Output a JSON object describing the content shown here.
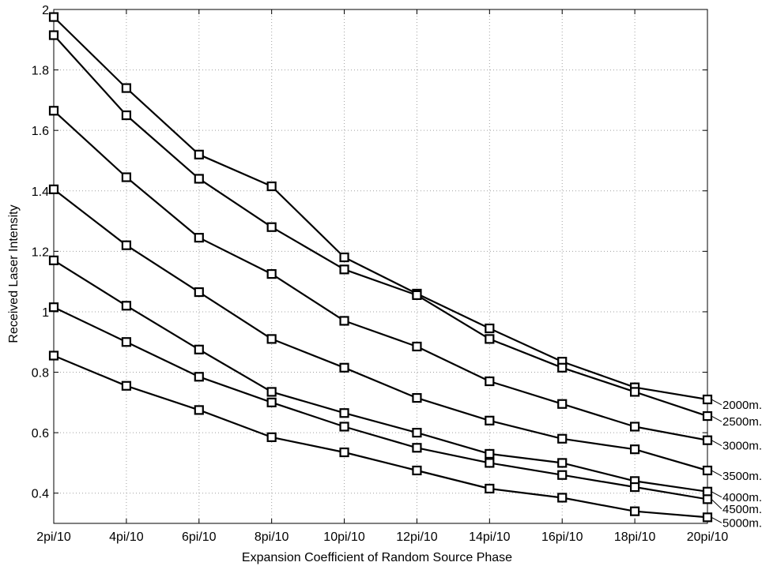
{
  "chart_data": {
    "type": "line",
    "title": "",
    "xlabel": "Expansion Coefficient of Random Source Phase",
    "ylabel": "Received Laser Intensity",
    "categories": [
      "2pi/10",
      "4pi/10",
      "6pi/10",
      "8pi/10",
      "10pi/10",
      "12pi/10",
      "14pi/10",
      "16pi/10",
      "18pi/10",
      "20pi/10"
    ],
    "ylim": [
      0.3,
      2.0
    ],
    "yticks": [
      "0.4",
      "0.6",
      "0.8",
      "1",
      "1.2",
      "1.4",
      "1.6",
      "1.8",
      "2"
    ],
    "grid": true,
    "marker": "square",
    "series": [
      {
        "name": "2000m.",
        "values": [
          1.975,
          1.74,
          1.52,
          1.415,
          1.18,
          1.06,
          0.945,
          0.835,
          0.75,
          0.71
        ]
      },
      {
        "name": "2500m.",
        "values": [
          1.915,
          1.65,
          1.44,
          1.28,
          1.14,
          1.055,
          0.91,
          0.815,
          0.735,
          0.655
        ]
      },
      {
        "name": "3000m.",
        "values": [
          1.665,
          1.445,
          1.245,
          1.125,
          0.97,
          0.885,
          0.77,
          0.695,
          0.62,
          0.575
        ]
      },
      {
        "name": "3500m.",
        "values": [
          1.405,
          1.22,
          1.065,
          0.91,
          0.815,
          0.715,
          0.64,
          0.58,
          0.545,
          0.475
        ]
      },
      {
        "name": "4000m.",
        "values": [
          1.17,
          1.02,
          0.875,
          0.735,
          0.665,
          0.6,
          0.53,
          0.5,
          0.44,
          0.405
        ]
      },
      {
        "name": "4500m.",
        "values": [
          1.015,
          0.9,
          0.785,
          0.7,
          0.62,
          0.55,
          0.5,
          0.46,
          0.42,
          0.38
        ]
      },
      {
        "name": "5000m.",
        "values": [
          0.855,
          0.755,
          0.675,
          0.585,
          0.535,
          0.475,
          0.415,
          0.385,
          0.34,
          0.32
        ]
      }
    ]
  }
}
